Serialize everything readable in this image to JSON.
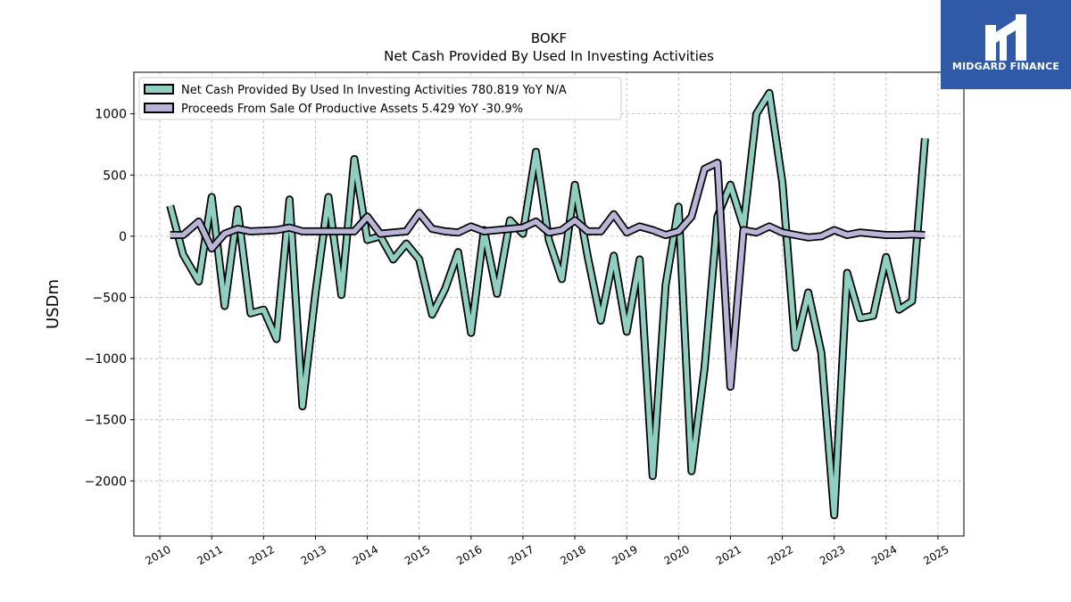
{
  "brand": {
    "name": "MIDGARD FINANCE",
    "background_color": "#2f5aa8",
    "icon": "midgard-monogram-icon"
  },
  "chart_data": {
    "type": "line",
    "title": "BOKF",
    "subtitle": "Net Cash Provided By Used In Investing Activities",
    "ylabel": "USDm",
    "xlabel": "",
    "xlim": [
      2009.5,
      2025.5
    ],
    "ylim": [
      -2450,
      1340
    ],
    "x_ticks": [
      2010,
      2011,
      2012,
      2013,
      2014,
      2015,
      2016,
      2017,
      2018,
      2019,
      2020,
      2021,
      2022,
      2023,
      2024,
      2025
    ],
    "y_ticks": [
      1000,
      500,
      0,
      -500,
      -1000,
      -1500,
      -2000
    ],
    "grid": true,
    "legend_position": "top-left",
    "series": [
      {
        "name": "Net Cash Provided By Used In Investing Activities",
        "legend_label": "Net Cash Provided By Used In Investing Activities  780.819 YoY N/A",
        "color": "#8ecfc2",
        "points": [
          [
            2010.2,
            250
          ],
          [
            2010.45,
            -150
          ],
          [
            2010.75,
            -370
          ],
          [
            2011.0,
            320
          ],
          [
            2011.25,
            -570
          ],
          [
            2011.5,
            220
          ],
          [
            2011.75,
            -630
          ],
          [
            2012.0,
            -600
          ],
          [
            2012.25,
            -840
          ],
          [
            2012.5,
            300
          ],
          [
            2012.75,
            -1390
          ],
          [
            2013.0,
            -470
          ],
          [
            2013.25,
            320
          ],
          [
            2013.5,
            -480
          ],
          [
            2013.75,
            630
          ],
          [
            2014.0,
            -30
          ],
          [
            2014.25,
            0
          ],
          [
            2014.5,
            -190
          ],
          [
            2014.75,
            -60
          ],
          [
            2015.0,
            -190
          ],
          [
            2015.25,
            -640
          ],
          [
            2015.5,
            -430
          ],
          [
            2015.75,
            -130
          ],
          [
            2016.0,
            -790
          ],
          [
            2016.25,
            50
          ],
          [
            2016.5,
            -470
          ],
          [
            2016.75,
            130
          ],
          [
            2017.0,
            20
          ],
          [
            2017.25,
            690
          ],
          [
            2017.5,
            -30
          ],
          [
            2017.75,
            -350
          ],
          [
            2018.0,
            420
          ],
          [
            2018.25,
            -170
          ],
          [
            2018.5,
            -690
          ],
          [
            2018.75,
            -160
          ],
          [
            2019.0,
            -780
          ],
          [
            2019.25,
            -190
          ],
          [
            2019.5,
            -1960
          ],
          [
            2019.75,
            -400
          ],
          [
            2020.0,
            240
          ],
          [
            2020.25,
            -1920
          ],
          [
            2020.5,
            -1080
          ],
          [
            2020.75,
            160
          ],
          [
            2021.0,
            420
          ],
          [
            2021.25,
            80
          ],
          [
            2021.5,
            1000
          ],
          [
            2021.75,
            1170
          ],
          [
            2022.0,
            440
          ],
          [
            2022.25,
            -910
          ],
          [
            2022.5,
            -460
          ],
          [
            2022.75,
            -950
          ],
          [
            2023.0,
            -2280
          ],
          [
            2023.25,
            -300
          ],
          [
            2023.5,
            -670
          ],
          [
            2023.75,
            -650
          ],
          [
            2024.0,
            -170
          ],
          [
            2024.25,
            -600
          ],
          [
            2024.5,
            -530
          ],
          [
            2024.75,
            800
          ]
        ]
      },
      {
        "name": "Proceeds From Sale Of Productive Assets",
        "legend_label": "Proceeds From Sale Of Productive Assets  5.429 YoY -30.9%",
        "color": "#b9b5d8",
        "points": [
          [
            2010.2,
            10
          ],
          [
            2010.45,
            10
          ],
          [
            2010.75,
            120
          ],
          [
            2011.0,
            -100
          ],
          [
            2011.25,
            20
          ],
          [
            2011.5,
            60
          ],
          [
            2011.75,
            40
          ],
          [
            2012.0,
            45
          ],
          [
            2012.25,
            50
          ],
          [
            2012.5,
            70
          ],
          [
            2012.75,
            40
          ],
          [
            2013.0,
            40
          ],
          [
            2013.25,
            40
          ],
          [
            2013.5,
            40
          ],
          [
            2013.75,
            40
          ],
          [
            2014.0,
            160
          ],
          [
            2014.25,
            20
          ],
          [
            2014.5,
            30
          ],
          [
            2014.75,
            40
          ],
          [
            2015.0,
            190
          ],
          [
            2015.25,
            60
          ],
          [
            2015.5,
            40
          ],
          [
            2015.75,
            30
          ],
          [
            2016.0,
            80
          ],
          [
            2016.25,
            40
          ],
          [
            2016.5,
            50
          ],
          [
            2016.75,
            60
          ],
          [
            2017.0,
            70
          ],
          [
            2017.25,
            120
          ],
          [
            2017.5,
            30
          ],
          [
            2017.75,
            50
          ],
          [
            2018.0,
            130
          ],
          [
            2018.25,
            40
          ],
          [
            2018.5,
            40
          ],
          [
            2018.75,
            180
          ],
          [
            2019.0,
            30
          ],
          [
            2019.25,
            80
          ],
          [
            2019.5,
            50
          ],
          [
            2019.75,
            10
          ],
          [
            2020.0,
            40
          ],
          [
            2020.25,
            160
          ],
          [
            2020.5,
            550
          ],
          [
            2020.75,
            600
          ],
          [
            2021.0,
            -1230
          ],
          [
            2021.25,
            50
          ],
          [
            2021.5,
            30
          ],
          [
            2021.75,
            80
          ],
          [
            2022.0,
            30
          ],
          [
            2022.25,
            10
          ],
          [
            2022.5,
            -10
          ],
          [
            2022.75,
            0
          ],
          [
            2023.0,
            50
          ],
          [
            2023.25,
            10
          ],
          [
            2023.5,
            30
          ],
          [
            2023.75,
            20
          ],
          [
            2024.0,
            10
          ],
          [
            2024.25,
            10
          ],
          [
            2024.5,
            15
          ],
          [
            2024.75,
            10
          ]
        ]
      }
    ]
  }
}
